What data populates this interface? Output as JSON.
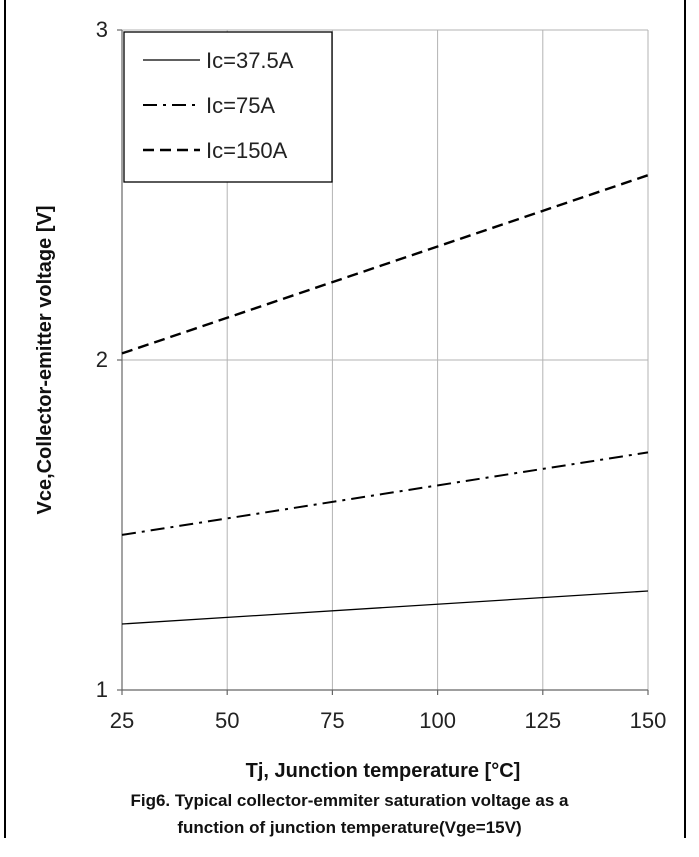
{
  "chart_data": {
    "type": "line",
    "xlabel": "Tj, Junction temperature [°C]",
    "ylabel": "Vce,Collector-emitter voltage [V]",
    "xlim": [
      25,
      150
    ],
    "ylim": [
      1,
      3
    ],
    "x_ticks": [
      "25",
      "50",
      "75",
      "100",
      "125",
      "150"
    ],
    "y_ticks": [
      "1",
      "2",
      "3"
    ],
    "grid": true,
    "legend_position": "top-left",
    "x": [
      25,
      150
    ],
    "series": [
      {
        "name": "Ic=37.5A",
        "values": [
          1.2,
          1.3
        ],
        "style": "solid",
        "color": "#000000"
      },
      {
        "name": "Ic=75A",
        "values": [
          1.47,
          1.72
        ],
        "style": "dash-dot",
        "color": "#000000"
      },
      {
        "name": "Ic=150A",
        "values": [
          2.02,
          2.56
        ],
        "style": "dashed",
        "color": "#000000"
      }
    ]
  },
  "caption": {
    "line1": "Fig6. Typical collector-emmiter saturation voltage as a",
    "line2": "function of junction temperature(Vge=15V)"
  }
}
